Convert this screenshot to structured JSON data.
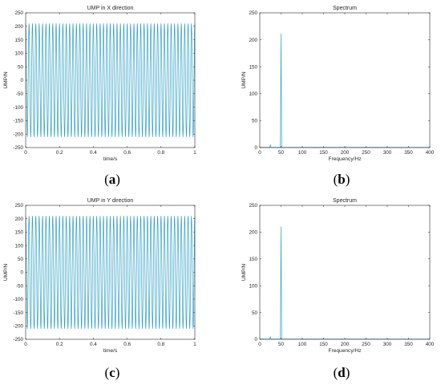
{
  "colors": {
    "line": "#2f9fc4",
    "axis": "#262626"
  },
  "captions": [
    "a",
    "b",
    "c",
    "d"
  ],
  "chart_data": [
    {
      "id": "a",
      "type": "line",
      "title": "UMP in X direction",
      "xlabel": "time/s",
      "ylabel": "UMP/N",
      "xlim": [
        0,
        1
      ],
      "ylim": [
        -250,
        250
      ],
      "xticks": [
        0,
        0.2,
        0.4,
        0.6,
        0.8,
        1
      ],
      "xtick_labels": [
        "0",
        "0.2",
        "0.4",
        "0.6",
        "0.8",
        "1"
      ],
      "yticks": [
        -250,
        -200,
        -150,
        -100,
        -50,
        0,
        50,
        100,
        150,
        200,
        250
      ],
      "yticks_labels": [
        "-250",
        "-200",
        "-150",
        "-100",
        "-50",
        "0",
        "50",
        "100",
        "150",
        "200",
        "250"
      ],
      "series": [
        {
          "frequency_hz": 50,
          "amplitude": 210,
          "x_range": [
            0,
            1
          ]
        }
      ]
    },
    {
      "id": "b",
      "type": "line",
      "title": "Spectrum",
      "xlabel": "Frequency/Hz",
      "ylabel": "UMP/N",
      "xlim": [
        0,
        400
      ],
      "ylim": [
        0,
        250
      ],
      "xticks": [
        0,
        50,
        100,
        150,
        200,
        250,
        300,
        350,
        400
      ],
      "xtick_labels": [
        "0",
        "50",
        "100",
        "150",
        "200",
        "250",
        "300",
        "350",
        "400"
      ],
      "yticks": [
        0,
        50,
        100,
        150,
        200,
        250
      ],
      "yticks_labels": [
        "0",
        "50",
        "100",
        "150",
        "200",
        "250"
      ],
      "series": [
        {
          "peaks": [
            {
              "x": 25,
              "y": 5
            },
            {
              "x": 50,
              "y": 211
            },
            {
              "x": 100,
              "y": 1.5
            },
            {
              "x": 150,
              "y": 1
            },
            {
              "x": 200,
              "y": 1
            },
            {
              "x": 250,
              "y": 1
            },
            {
              "x": 300,
              "y": 1
            },
            {
              "x": 350,
              "y": 1
            }
          ]
        }
      ]
    },
    {
      "id": "c",
      "type": "line",
      "title": "UMP in Y direction",
      "xlabel": "time/s",
      "ylabel": "UMP/N",
      "xlim": [
        0,
        1
      ],
      "ylim": [
        -250,
        250
      ],
      "xticks": [
        0,
        0.2,
        0.4,
        0.6,
        0.8,
        1
      ],
      "xtick_labels": [
        "0",
        "0.2",
        "0.4",
        "0.6",
        "0.8",
        "1"
      ],
      "yticks": [
        -250,
        -200,
        -150,
        -100,
        -50,
        0,
        50,
        100,
        150,
        200,
        250
      ],
      "yticks_labels": [
        "-250",
        "-200",
        "-150",
        "-100",
        "-50",
        "0",
        "50",
        "100",
        "150",
        "200",
        "250"
      ],
      "series": [
        {
          "frequency_hz": 50,
          "amplitude": 210,
          "x_range": [
            0,
            1
          ]
        }
      ]
    },
    {
      "id": "d",
      "type": "line",
      "title": "Spectrum",
      "xlabel": "Frequency/Hz",
      "ylabel": "UMP/N",
      "xlim": [
        0,
        400
      ],
      "ylim": [
        0,
        250
      ],
      "xticks": [
        0,
        50,
        100,
        150,
        200,
        250,
        300,
        350,
        400
      ],
      "xtick_labels": [
        "0",
        "50",
        "100",
        "150",
        "200",
        "250",
        "300",
        "350",
        "400"
      ],
      "yticks": [
        0,
        50,
        100,
        150,
        200,
        250
      ],
      "yticks_labels": [
        "0",
        "50",
        "100",
        "150",
        "200",
        "250"
      ],
      "series": [
        {
          "peaks": [
            {
              "x": 25,
              "y": 5
            },
            {
              "x": 50,
              "y": 210
            },
            {
              "x": 100,
              "y": 1.5
            },
            {
              "x": 150,
              "y": 1
            },
            {
              "x": 200,
              "y": 1
            },
            {
              "x": 250,
              "y": 1
            },
            {
              "x": 300,
              "y": 1
            },
            {
              "x": 350,
              "y": 1
            }
          ]
        }
      ]
    }
  ]
}
